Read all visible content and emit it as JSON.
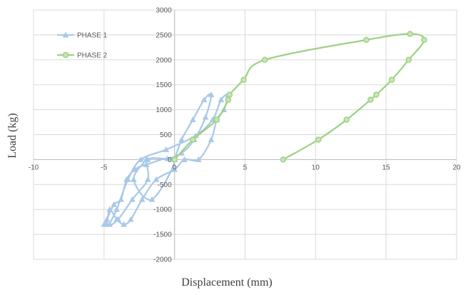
{
  "chart_data": {
    "type": "scatter",
    "title": "",
    "xlabel": "Displacement (mm)",
    "ylabel": "Load (kg)",
    "xlim": [
      -10,
      20
    ],
    "ylim": [
      -2000,
      3000
    ],
    "x_ticks": [
      -10,
      -5,
      0,
      5,
      10,
      15,
      20
    ],
    "y_ticks": [
      -2000,
      -1500,
      -1000,
      -500,
      0,
      500,
      1000,
      1500,
      2000,
      2500,
      3000
    ],
    "grid": "vertical and horizontal major gridlines",
    "legend_position": "top-left",
    "series": [
      {
        "name": "PHASE 1",
        "color": "#a9c9e8",
        "marker": "triangle",
        "points": [
          [
            0,
            0
          ],
          [
            0.5,
            400
          ],
          [
            1.3,
            800
          ],
          [
            2.1,
            1200
          ],
          [
            2.6,
            1300
          ],
          [
            2.2,
            850
          ],
          [
            1.4,
            400
          ],
          [
            0.5,
            130
          ],
          [
            -0.5,
            20
          ],
          [
            -1.9,
            0
          ],
          [
            -1.9,
            -400
          ],
          [
            -3.0,
            -800
          ],
          [
            -4.0,
            -1200
          ],
          [
            -4.6,
            -1300
          ],
          [
            -4.1,
            -1000
          ],
          [
            -3.3,
            -400
          ],
          [
            -2.4,
            0
          ],
          [
            -0.6,
            200
          ],
          [
            1.5,
            480
          ],
          [
            2.7,
            800
          ],
          [
            3.3,
            1200
          ],
          [
            3.8,
            1300
          ],
          [
            3.5,
            1000
          ],
          [
            3.0,
            800
          ],
          [
            2.6,
            400
          ],
          [
            1.7,
            0
          ],
          [
            0.7,
            0
          ],
          [
            0,
            -200
          ],
          [
            -1.3,
            -400
          ],
          [
            -2.3,
            -800
          ],
          [
            -3.1,
            -1200
          ],
          [
            -3.6,
            -1300
          ],
          [
            -4.1,
            -1200
          ],
          [
            -4.6,
            -1000
          ],
          [
            -4.8,
            -1300
          ],
          [
            -5.0,
            -1300
          ],
          [
            -4.8,
            -1200
          ],
          [
            -4.3,
            -900
          ],
          [
            -3.8,
            -800
          ],
          [
            -3.4,
            -400
          ],
          [
            -2.8,
            -200
          ],
          [
            -2.0,
            -100
          ],
          [
            0,
            0
          ],
          [
            -1.6,
            -800
          ],
          [
            -2.9,
            -400
          ],
          [
            -2.0,
            0
          ]
        ]
      },
      {
        "name": "PHASE 2",
        "color": "#9fd185",
        "marker": "circle",
        "points": [
          [
            0,
            0
          ],
          [
            1.3,
            400
          ],
          [
            3.0,
            800
          ],
          [
            3.8,
            1200
          ],
          [
            3.9,
            1300
          ],
          [
            4.9,
            1600
          ],
          [
            6.4,
            2000
          ],
          [
            13.6,
            2400
          ],
          [
            16.7,
            2520
          ],
          [
            17.7,
            2400
          ],
          [
            16.6,
            2000
          ],
          [
            15.4,
            1600
          ],
          [
            14.3,
            1300
          ],
          [
            13.9,
            1200
          ],
          [
            12.2,
            800
          ],
          [
            10.2,
            400
          ],
          [
            7.7,
            0
          ]
        ]
      }
    ]
  }
}
